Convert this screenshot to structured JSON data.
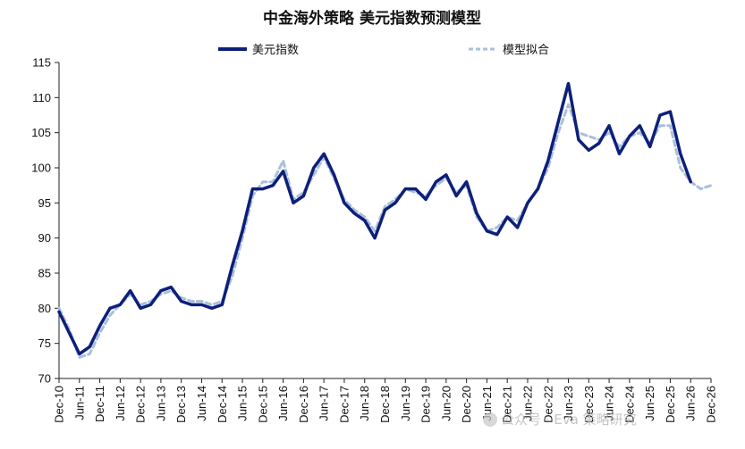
{
  "chart_data": {
    "type": "line",
    "title": "中金海外策略 美元指数预测模型",
    "xlabel": "",
    "ylabel": "",
    "ylim": [
      70,
      115
    ],
    "y_ticks": [
      "70",
      "75",
      "80",
      "85",
      "90",
      "95",
      "100",
      "105",
      "110",
      "115"
    ],
    "x_ticks": [
      "Dec-10",
      "Jun-11",
      "Dec-11",
      "Jun-12",
      "Dec-12",
      "Jun-13",
      "Dec-13",
      "Jun-14",
      "Dec-14",
      "Jun-15",
      "Dec-15",
      "Jun-16",
      "Dec-16",
      "Jun-17",
      "Dec-17",
      "Jun-18",
      "Dec-18",
      "Jun-19",
      "Dec-19",
      "Jun-20",
      "Dec-20",
      "Jun-21",
      "Dec-21",
      "Jun-22",
      "Dec-22",
      "Jun-23",
      "Dec-23",
      "Jun-24",
      "Dec-24",
      "Jun-25",
      "Dec-25",
      "Jun-26",
      "Dec-26"
    ],
    "grid": false,
    "legend_position": "top",
    "series": [
      {
        "name": "美元指数",
        "color": "#0d1f7a",
        "style": "solid",
        "x": [
          0,
          0.5,
          1,
          1.5,
          2,
          2.5,
          3,
          3.5,
          4,
          4.5,
          5,
          5.5,
          6,
          6.5,
          7,
          7.5,
          8,
          8.5,
          9,
          9.5,
          10,
          10.5,
          11,
          11.5,
          12,
          12.5,
          13,
          13.5,
          14,
          14.5,
          15,
          15.5,
          16,
          16.5,
          17,
          17.5,
          18,
          18.5,
          19,
          19.5,
          20,
          20.5,
          21,
          21.5,
          22,
          22.5,
          23,
          23.5,
          24,
          24.5,
          25,
          25.5,
          26,
          26.5,
          27,
          27.5,
          28,
          28.5,
          29,
          29.5,
          30,
          30.5,
          31
        ],
        "values": [
          79.5,
          76.5,
          73.5,
          74.5,
          77.5,
          80,
          80.5,
          82.5,
          80,
          80.5,
          82.5,
          83,
          81,
          80.5,
          80.5,
          80,
          80.5,
          86,
          91,
          97,
          97,
          97.5,
          99.5,
          95,
          96,
          100,
          102,
          99,
          95,
          93.5,
          92.5,
          90,
          94,
          95,
          97,
          97,
          95.5,
          98,
          99,
          96,
          98,
          93.5,
          91,
          90.5,
          93,
          91.5,
          95,
          97,
          101,
          106.5,
          112,
          104,
          102.5,
          103.5,
          106,
          102,
          104.5,
          106,
          103,
          107.5,
          108,
          102,
          98
        ]
      },
      {
        "name": "模型拟合",
        "color": "#a9bfdc",
        "style": "dashed",
        "x": [
          0,
          0.5,
          1,
          1.5,
          2,
          2.5,
          3,
          3.5,
          4,
          4.5,
          5,
          5.5,
          6,
          6.5,
          7,
          7.5,
          8,
          8.5,
          9,
          9.5,
          10,
          10.5,
          11,
          11.5,
          12,
          12.5,
          13,
          13.5,
          14,
          14.5,
          15,
          15.5,
          16,
          16.5,
          17,
          17.5,
          18,
          18.5,
          19,
          19.5,
          20,
          20.5,
          21,
          21.5,
          22,
          22.5,
          23,
          23.5,
          24,
          24.5,
          25,
          25.5,
          26,
          26.5,
          27,
          27.5,
          28,
          28.5,
          29,
          29.5,
          30,
          30.5,
          31,
          31.5,
          32
        ],
        "values": [
          80,
          77,
          73,
          73.5,
          76.5,
          79,
          80.5,
          82,
          80.5,
          81,
          82,
          82.5,
          81.5,
          81,
          81,
          80.5,
          81,
          84.5,
          90,
          96,
          98,
          98,
          101,
          95.5,
          96.5,
          99,
          101.5,
          98.5,
          95.5,
          94,
          93,
          91,
          94.5,
          95.5,
          97,
          96.5,
          96,
          97.5,
          98.5,
          96.5,
          97.5,
          93,
          91,
          91.5,
          93,
          92.5,
          95,
          97,
          100,
          105,
          109,
          105,
          104.5,
          104,
          105,
          103,
          104.5,
          105,
          103.5,
          106,
          106,
          100,
          98,
          97,
          97.5
        ]
      }
    ]
  },
  "watermark": {
    "text": "公众号 · Eva 策略研究"
  }
}
